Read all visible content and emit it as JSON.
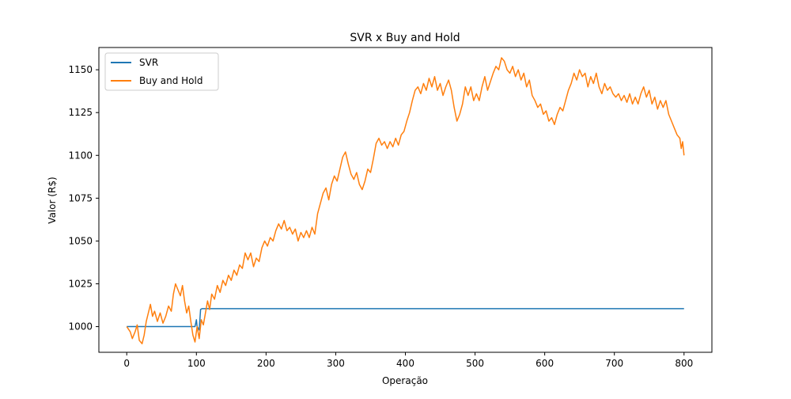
{
  "chart_data": {
    "type": "line",
    "title": "SVR x Buy and Hold",
    "xlabel": "Operação",
    "ylabel": "Valor (R$)",
    "xlim": [
      -40,
      840
    ],
    "ylim": [
      985,
      1163
    ],
    "x_ticks": [
      0,
      100,
      200,
      300,
      400,
      500,
      600,
      700,
      800
    ],
    "y_ticks": [
      1000,
      1025,
      1050,
      1075,
      1100,
      1125,
      1150
    ],
    "grid": false,
    "legend_position": "upper-left",
    "series": [
      {
        "name": "SVR",
        "color": "#1f77b4",
        "points": [
          [
            0,
            1000
          ],
          [
            98,
            1000
          ],
          [
            100,
            1004
          ],
          [
            101,
            1000
          ],
          [
            104,
            998
          ],
          [
            106,
            1010
          ],
          [
            108,
            1010.5
          ],
          [
            800,
            1010.5
          ]
        ]
      },
      {
        "name": "Buy and Hold",
        "color": "#ff7f0e",
        "points": [
          [
            0,
            1000
          ],
          [
            5,
            997
          ],
          [
            8,
            993
          ],
          [
            12,
            997
          ],
          [
            15,
            1001
          ],
          [
            18,
            992
          ],
          [
            22,
            990
          ],
          [
            25,
            995
          ],
          [
            28,
            1003
          ],
          [
            31,
            1008
          ],
          [
            34,
            1013
          ],
          [
            37,
            1006
          ],
          [
            40,
            1009
          ],
          [
            44,
            1003
          ],
          [
            48,
            1008
          ],
          [
            52,
            1002
          ],
          [
            56,
            1006
          ],
          [
            60,
            1012
          ],
          [
            64,
            1009
          ],
          [
            67,
            1019
          ],
          [
            70,
            1025
          ],
          [
            74,
            1021
          ],
          [
            77,
            1018
          ],
          [
            80,
            1024
          ],
          [
            83,
            1015
          ],
          [
            86,
            1008
          ],
          [
            89,
            1012
          ],
          [
            92,
            1003
          ],
          [
            95,
            995
          ],
          [
            98,
            991
          ],
          [
            101,
            1000
          ],
          [
            104,
            993
          ],
          [
            107,
            1004
          ],
          [
            110,
            1001
          ],
          [
            113,
            1008
          ],
          [
            116,
            1015
          ],
          [
            119,
            1010
          ],
          [
            122,
            1019
          ],
          [
            126,
            1016
          ],
          [
            130,
            1024
          ],
          [
            134,
            1020
          ],
          [
            138,
            1027
          ],
          [
            142,
            1024
          ],
          [
            146,
            1030
          ],
          [
            150,
            1027
          ],
          [
            154,
            1033
          ],
          [
            158,
            1030
          ],
          [
            162,
            1036
          ],
          [
            166,
            1034
          ],
          [
            170,
            1043
          ],
          [
            174,
            1039
          ],
          [
            178,
            1043
          ],
          [
            182,
            1035
          ],
          [
            186,
            1040
          ],
          [
            190,
            1038
          ],
          [
            194,
            1046
          ],
          [
            198,
            1050
          ],
          [
            202,
            1047
          ],
          [
            206,
            1052
          ],
          [
            210,
            1050
          ],
          [
            214,
            1056
          ],
          [
            218,
            1060
          ],
          [
            222,
            1057
          ],
          [
            226,
            1062
          ],
          [
            230,
            1056
          ],
          [
            234,
            1058
          ],
          [
            238,
            1054
          ],
          [
            242,
            1057
          ],
          [
            246,
            1050
          ],
          [
            250,
            1055
          ],
          [
            254,
            1052
          ],
          [
            258,
            1056
          ],
          [
            262,
            1052
          ],
          [
            266,
            1058
          ],
          [
            270,
            1054
          ],
          [
            274,
            1066
          ],
          [
            278,
            1072
          ],
          [
            282,
            1078
          ],
          [
            286,
            1081
          ],
          [
            290,
            1074
          ],
          [
            294,
            1083
          ],
          [
            298,
            1088
          ],
          [
            302,
            1085
          ],
          [
            306,
            1092
          ],
          [
            310,
            1099
          ],
          [
            314,
            1102
          ],
          [
            318,
            1095
          ],
          [
            322,
            1089
          ],
          [
            326,
            1086
          ],
          [
            330,
            1090
          ],
          [
            334,
            1083
          ],
          [
            338,
            1080
          ],
          [
            342,
            1085
          ],
          [
            346,
            1092
          ],
          [
            350,
            1090
          ],
          [
            354,
            1098
          ],
          [
            358,
            1107
          ],
          [
            362,
            1110
          ],
          [
            366,
            1106
          ],
          [
            370,
            1108
          ],
          [
            374,
            1104
          ],
          [
            378,
            1108
          ],
          [
            382,
            1105
          ],
          [
            386,
            1110
          ],
          [
            390,
            1106
          ],
          [
            394,
            1112
          ],
          [
            398,
            1114
          ],
          [
            402,
            1120
          ],
          [
            406,
            1125
          ],
          [
            410,
            1132
          ],
          [
            414,
            1138
          ],
          [
            418,
            1140
          ],
          [
            422,
            1136
          ],
          [
            426,
            1142
          ],
          [
            430,
            1138
          ],
          [
            434,
            1145
          ],
          [
            438,
            1140
          ],
          [
            442,
            1146
          ],
          [
            446,
            1138
          ],
          [
            450,
            1142
          ],
          [
            454,
            1135
          ],
          [
            458,
            1140
          ],
          [
            462,
            1144
          ],
          [
            466,
            1138
          ],
          [
            470,
            1128
          ],
          [
            474,
            1120
          ],
          [
            478,
            1124
          ],
          [
            482,
            1130
          ],
          [
            486,
            1140
          ],
          [
            490,
            1135
          ],
          [
            494,
            1140
          ],
          [
            498,
            1132
          ],
          [
            502,
            1136
          ],
          [
            506,
            1132
          ],
          [
            510,
            1140
          ],
          [
            514,
            1146
          ],
          [
            518,
            1138
          ],
          [
            522,
            1143
          ],
          [
            526,
            1148
          ],
          [
            530,
            1152
          ],
          [
            534,
            1150
          ],
          [
            538,
            1157
          ],
          [
            542,
            1155
          ],
          [
            546,
            1150
          ],
          [
            550,
            1148
          ],
          [
            554,
            1152
          ],
          [
            558,
            1146
          ],
          [
            562,
            1150
          ],
          [
            566,
            1144
          ],
          [
            570,
            1148
          ],
          [
            574,
            1140
          ],
          [
            578,
            1144
          ],
          [
            582,
            1135
          ],
          [
            586,
            1132
          ],
          [
            590,
            1128
          ],
          [
            594,
            1130
          ],
          [
            598,
            1124
          ],
          [
            602,
            1126
          ],
          [
            606,
            1120
          ],
          [
            610,
            1122
          ],
          [
            614,
            1118
          ],
          [
            618,
            1124
          ],
          [
            622,
            1128
          ],
          [
            626,
            1126
          ],
          [
            630,
            1132
          ],
          [
            634,
            1138
          ],
          [
            638,
            1142
          ],
          [
            642,
            1148
          ],
          [
            646,
            1144
          ],
          [
            650,
            1150
          ],
          [
            654,
            1146
          ],
          [
            658,
            1148
          ],
          [
            662,
            1140
          ],
          [
            666,
            1146
          ],
          [
            670,
            1142
          ],
          [
            674,
            1148
          ],
          [
            678,
            1140
          ],
          [
            682,
            1136
          ],
          [
            686,
            1142
          ],
          [
            690,
            1138
          ],
          [
            694,
            1140
          ],
          [
            698,
            1136
          ],
          [
            702,
            1134
          ],
          [
            706,
            1136
          ],
          [
            710,
            1132
          ],
          [
            714,
            1135
          ],
          [
            718,
            1131
          ],
          [
            722,
            1136
          ],
          [
            726,
            1130
          ],
          [
            730,
            1134
          ],
          [
            734,
            1130
          ],
          [
            738,
            1136
          ],
          [
            742,
            1140
          ],
          [
            746,
            1134
          ],
          [
            750,
            1138
          ],
          [
            754,
            1130
          ],
          [
            758,
            1134
          ],
          [
            762,
            1127
          ],
          [
            766,
            1132
          ],
          [
            770,
            1128
          ],
          [
            774,
            1132
          ],
          [
            778,
            1124
          ],
          [
            782,
            1120
          ],
          [
            786,
            1116
          ],
          [
            790,
            1112
          ],
          [
            794,
            1110
          ],
          [
            796,
            1104
          ],
          [
            798,
            1108
          ],
          [
            800,
            1100
          ]
        ]
      }
    ]
  }
}
